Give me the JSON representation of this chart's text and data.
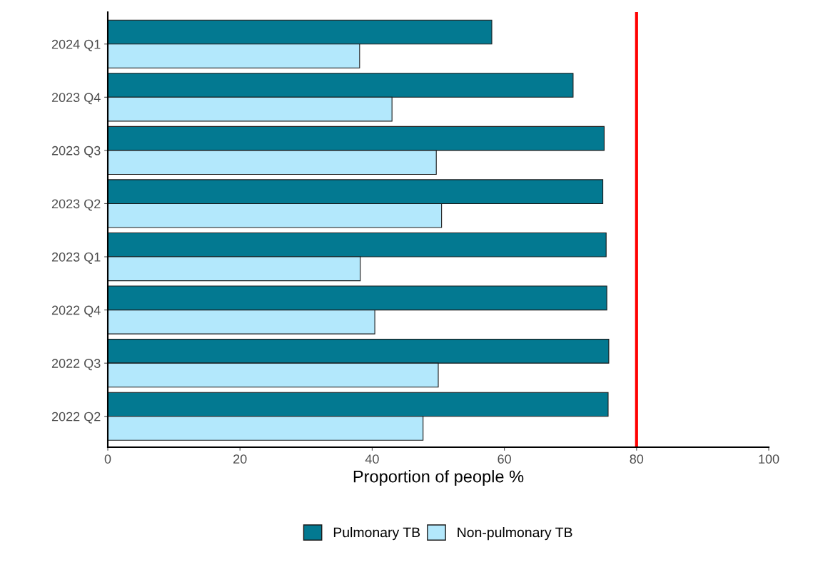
{
  "chart_data": {
    "type": "bar",
    "orientation": "horizontal",
    "xlabel": "Proportion of people %",
    "categories": [
      "2024 Q1",
      "2023 Q4",
      "2023 Q3",
      "2023 Q2",
      "2023 Q1",
      "2022 Q4",
      "2022 Q3",
      "2022 Q2"
    ],
    "series": [
      {
        "name": "Pulmonary TB",
        "color": "#037991",
        "values": [
          58.1,
          70.4,
          75.1,
          74.9,
          75.4,
          75.5,
          75.8,
          75.7
        ]
      },
      {
        "name": "Non-pulmonary TB",
        "color": "#b3e8fc",
        "values": [
          38.1,
          43.0,
          49.7,
          50.5,
          38.2,
          40.4,
          50.0,
          47.7
        ]
      }
    ],
    "xlim": [
      0,
      100
    ],
    "xticks": [
      0,
      20,
      40,
      60,
      80,
      100
    ],
    "ref_lines": [
      {
        "axis": "x",
        "value": 80,
        "color": "#ff0000",
        "line_style": "solid"
      }
    ],
    "grid": false,
    "legend": "bottom"
  }
}
